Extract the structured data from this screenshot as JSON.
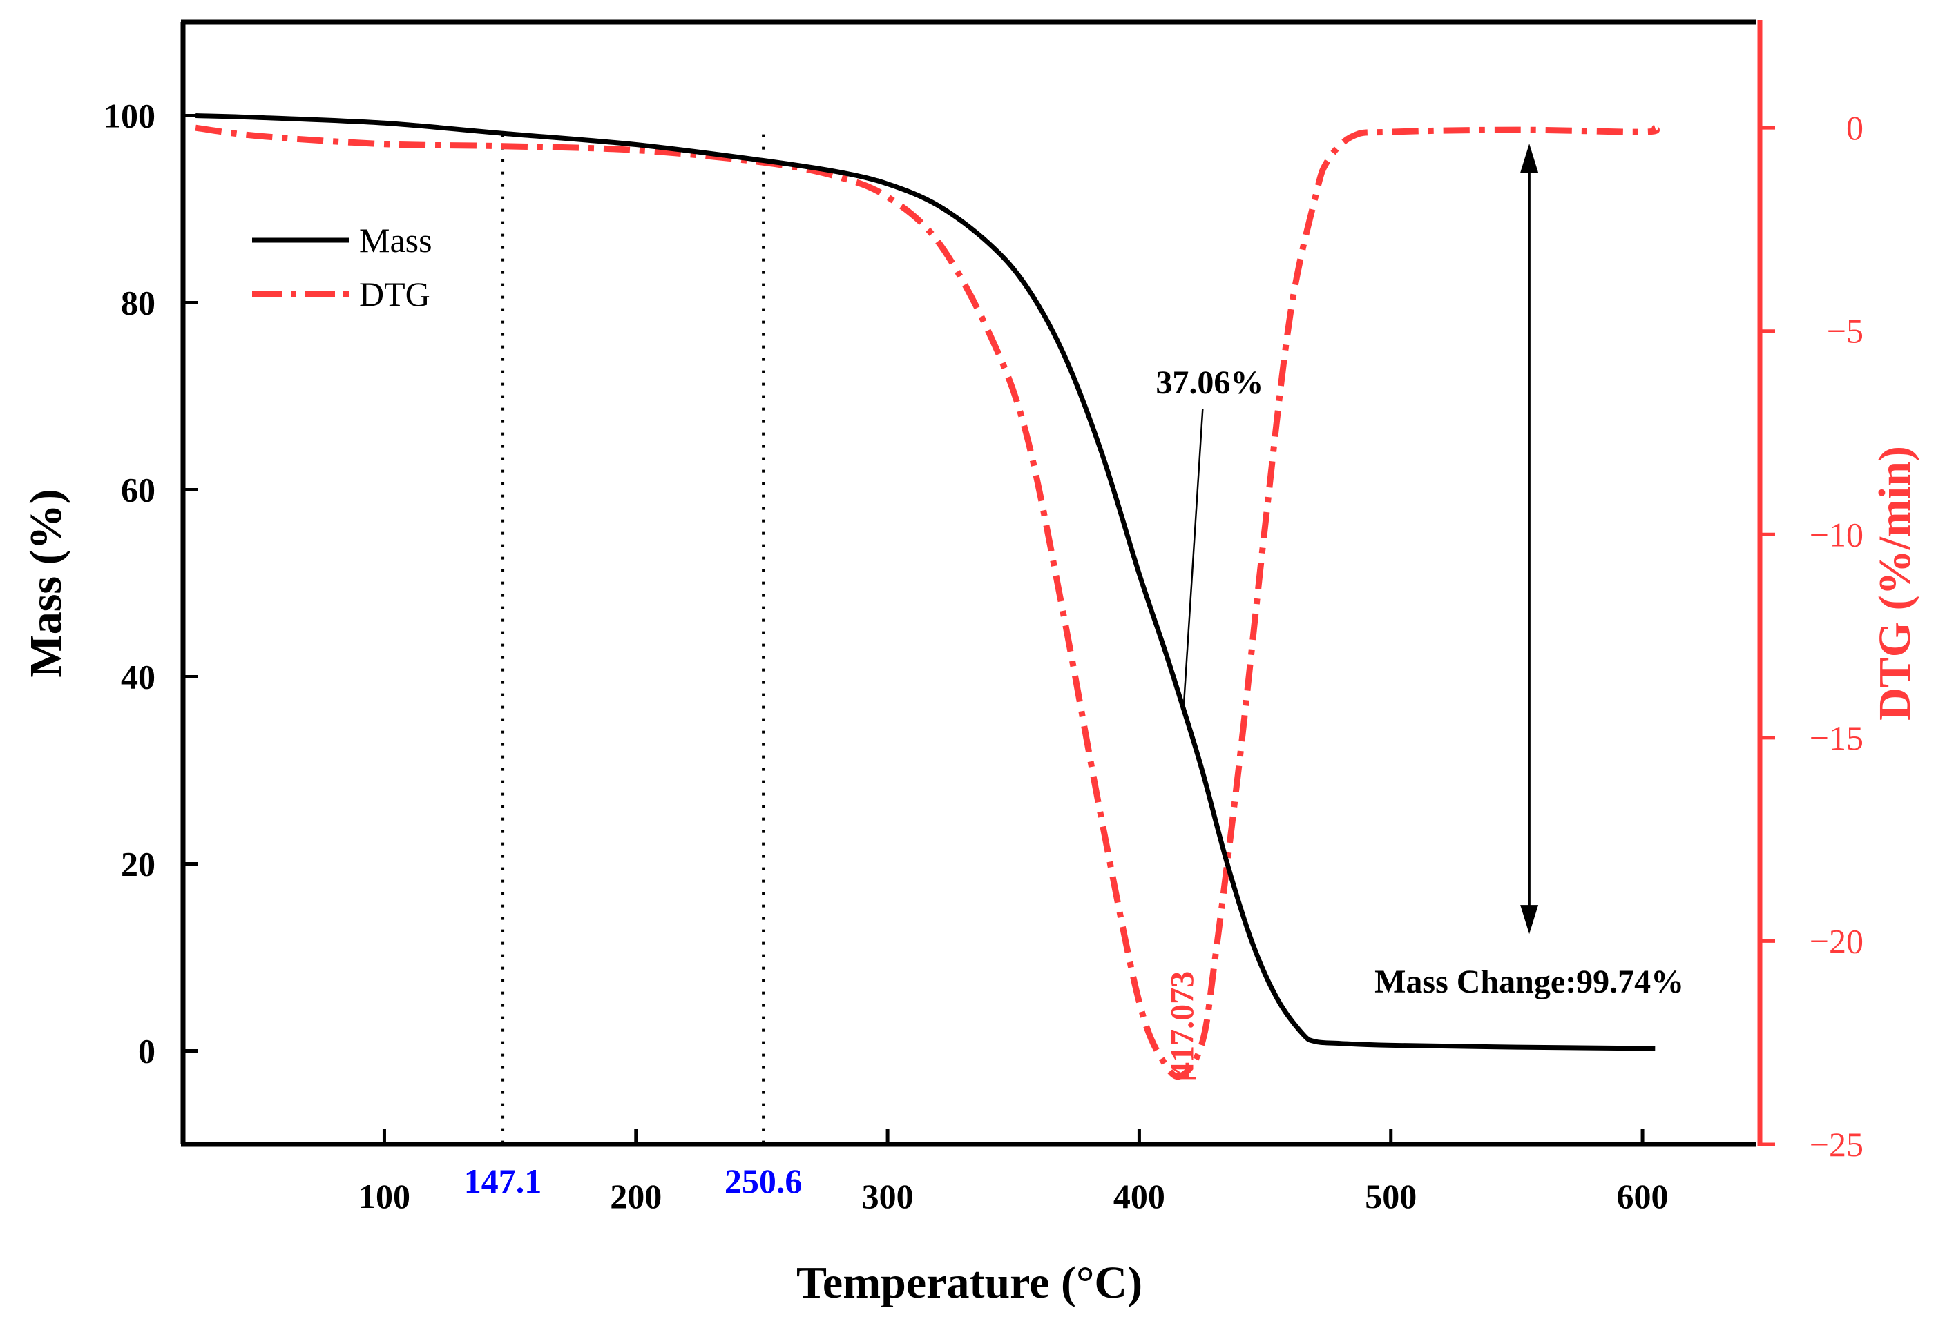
{
  "chart_data": {
    "type": "line",
    "xlabel": "Temperature (°C)",
    "ylabel": "Mass (%)",
    "y2label": "DTG (%/min)",
    "xlim": [
      20,
      645
    ],
    "ylim": [
      -10,
      110
    ],
    "y2lim": [
      -25,
      2.6
    ],
    "xticks": [
      100,
      200,
      300,
      400,
      500,
      600
    ],
    "yticks": [
      0,
      20,
      40,
      60,
      80,
      100
    ],
    "y2ticks": [
      0,
      -5,
      -10,
      -15,
      -20,
      -25
    ],
    "y2ticklabels": [
      "0",
      "−5",
      "−10",
      "−15",
      "−20",
      "−25"
    ],
    "grid": false,
    "legend": {
      "position": "top-left",
      "entries": [
        {
          "label": "Mass",
          "color": "#000000",
          "style": "solid"
        },
        {
          "label": "DTG",
          "color": "#ff3b3b",
          "style": "dashdot"
        }
      ]
    },
    "series": [
      {
        "name": "Mass",
        "axis": "left",
        "color": "#000000",
        "x": [
          25,
          50,
          100,
          147.1,
          200,
          250.6,
          280,
          300,
          320,
          340,
          355,
          370,
          385,
          400,
          410,
          417,
          425,
          435,
          445,
          455,
          465,
          470,
          480,
          500,
          550,
          605
        ],
        "y": [
          100,
          99.8,
          99.2,
          98.1,
          96.9,
          95.2,
          94,
          92.7,
          90.4,
          86.4,
          81.8,
          74.5,
          64,
          51,
          43,
          37.06,
          30,
          20,
          11.5,
          5.5,
          1.8,
          1.0,
          0.8,
          0.6,
          0.4,
          0.26
        ]
      },
      {
        "name": "DTG",
        "axis": "right",
        "color": "#ff3b3b",
        "x": [
          25,
          50,
          100,
          147.1,
          200,
          250.6,
          280,
          300,
          320,
          340,
          355,
          370,
          385,
          400,
          410,
          417.073,
          425,
          430,
          440,
          450,
          460,
          470,
          475,
          485,
          500,
          550,
          600,
          605
        ],
        "y": [
          0,
          -0.2,
          -0.4,
          -0.45,
          -0.55,
          -0.85,
          -1.2,
          -1.7,
          -2.8,
          -5,
          -7.5,
          -12,
          -17,
          -21.5,
          -23,
          -23.3,
          -22.5,
          -20.5,
          -15.5,
          -9.8,
          -4.6,
          -1.7,
          -0.8,
          -0.2,
          -0.1,
          -0.05,
          -0.1,
          0
        ]
      }
    ],
    "annotations": {
      "vline_left": "147.1",
      "vline_right": "250.6",
      "vline_values": [
        147.1,
        250.6
      ],
      "mass_percent_label": "37.06%",
      "mass_percent_x": 417,
      "mass_percent_y": 37.06,
      "peak_label": "417.073",
      "peak_x": 417.073,
      "peak_y": -23.3,
      "mass_change_label": "Mass Change:99.74%",
      "arrow_x": 555,
      "arrow_y_top": 97,
      "arrow_y_bottom": 12.5
    },
    "colors": {
      "mass": "#000000",
      "dtg": "#ff3b3b",
      "vline_label": "#0000ff"
    }
  }
}
